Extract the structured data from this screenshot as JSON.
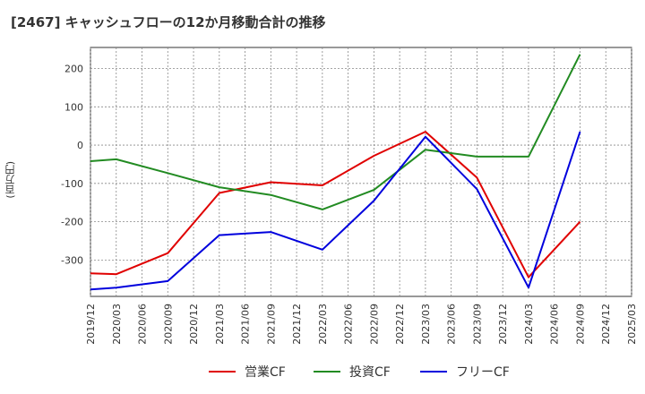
{
  "chart_data": {
    "type": "line",
    "title": "[2467]  キャッシュフローの12か月移動合計の推移",
    "ylabel": "(百万円)",
    "xlabel": "",
    "x": [
      "2019/12",
      "2020/03",
      "2020/06",
      "2020/09",
      "2020/12",
      "2021/03",
      "2021/06",
      "2021/09",
      "2021/12",
      "2022/03",
      "2022/06",
      "2022/09",
      "2022/12",
      "2023/03",
      "2023/06",
      "2023/09",
      "2023/12",
      "2024/03",
      "2024/06",
      "2024/09",
      "2024/12",
      "2025/03"
    ],
    "ylim": [
      -395,
      255
    ],
    "yticks": [
      200,
      100,
      0,
      -100,
      -200,
      -300
    ],
    "grid": true,
    "legend_position": "bottom",
    "series": [
      {
        "name": "営業CF",
        "color": "#e00000",
        "values": [
          -335,
          -337,
          null,
          -282,
          null,
          -125,
          null,
          -97,
          null,
          -105,
          null,
          -28,
          null,
          35,
          null,
          -85,
          null,
          -345,
          null,
          -200,
          null,
          null
        ]
      },
      {
        "name": "投資CF",
        "color": "#228b22",
        "values": [
          -42,
          -37,
          null,
          -73,
          null,
          -110,
          null,
          -130,
          null,
          -168,
          null,
          -117,
          null,
          -12,
          null,
          -30,
          null,
          -30,
          null,
          237,
          null,
          null
        ]
      },
      {
        "name": "フリーCF",
        "color": "#0000dd",
        "values": [
          -377,
          -372,
          null,
          -355,
          null,
          -235,
          null,
          -227,
          null,
          -273,
          null,
          -145,
          null,
          22,
          null,
          -115,
          null,
          -372,
          null,
          35,
          null,
          null
        ]
      }
    ]
  }
}
